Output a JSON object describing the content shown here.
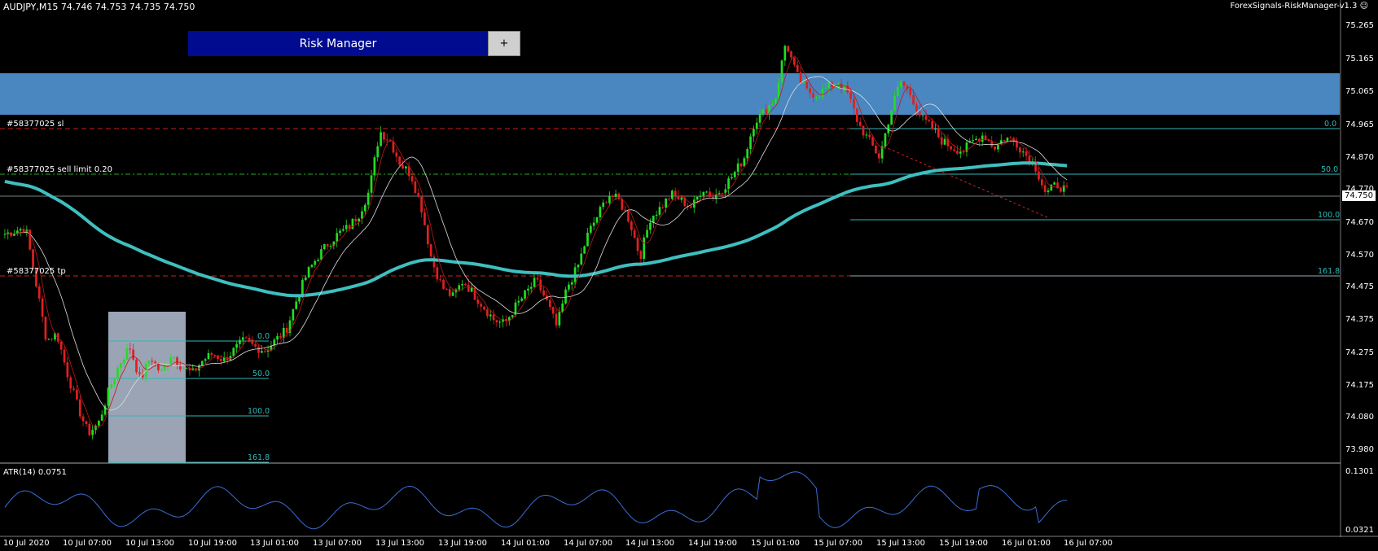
{
  "header": {
    "symbol_label": "AUDJPY,M15  74.746 74.753 74.735 74.750",
    "ea_label": "ForexSignals-RiskManager-v1.3 ☺"
  },
  "risk_manager": {
    "button_label": "Risk Manager",
    "plus_label": "+"
  },
  "orders": {
    "sl_label": "#58377025 sl",
    "limit_label": "#58377025 sell limit 0.20",
    "tp_label": "#58377025 tp"
  },
  "fib_right": {
    "l0": "0.0",
    "l50": "50.0",
    "l100": "100.0",
    "l161": "161.8"
  },
  "fib_left": {
    "l0": "0.0",
    "l50": "50.0",
    "l100": "100.0",
    "l161": "161.8"
  },
  "price_axis": [
    "75.265",
    "75.165",
    "75.065",
    "74.965",
    "74.870",
    "74.770",
    "74.670",
    "74.570",
    "74.475",
    "74.375",
    "74.275",
    "74.175",
    "74.080",
    "73.980"
  ],
  "current_price": "74.750",
  "atr": {
    "label": "ATR(14) 0.0751",
    "max": "0.1301",
    "min": "0.0321"
  },
  "time_axis": [
    "10 Jul 2020",
    "10 Jul 07:00",
    "10 Jul 13:00",
    "10 Jul 19:00",
    "13 Jul 01:00",
    "13 Jul 07:00",
    "13 Jul 13:00",
    "13 Jul 19:00",
    "14 Jul 01:00",
    "14 Jul 07:00",
    "14 Jul 13:00",
    "14 Jul 19:00",
    "15 Jul 01:00",
    "15 Jul 07:00",
    "15 Jul 13:00",
    "15 Jul 19:00",
    "16 Jul 01:00",
    "16 Jul 07:00"
  ],
  "colors": {
    "bull": "#22dd22",
    "bear": "#e02020",
    "ma_slow": "#3fbfbf",
    "zone": "#4a86c0",
    "sl_line": "#cc2020",
    "limit_line": "#22aa22",
    "fib": "#2fb9b9",
    "atr": "#3a6ed6",
    "box": "#a7b2c4",
    "rm_bg": "#000b8f"
  },
  "chart_data": {
    "type": "candlestick",
    "symbol": "AUDJPY",
    "timeframe": "M15",
    "ohlc_last": {
      "open": 74.746,
      "high": 74.753,
      "low": 74.735,
      "close": 74.75
    },
    "price_range": [
      73.94,
      75.3
    ],
    "close_path": [
      [
        0,
        74.62
      ],
      [
        2,
        74.64
      ],
      [
        4,
        74.3
      ],
      [
        5,
        74.32
      ],
      [
        6,
        74.2
      ],
      [
        7,
        74.1
      ],
      [
        8,
        74.02
      ],
      [
        9,
        74.05
      ],
      [
        10,
        74.15
      ],
      [
        11,
        74.23
      ],
      [
        12,
        74.28
      ],
      [
        13,
        74.18
      ],
      [
        14,
        74.25
      ],
      [
        15,
        74.2
      ],
      [
        16,
        74.26
      ],
      [
        17,
        74.22
      ],
      [
        18,
        74.2
      ],
      [
        19,
        74.24
      ],
      [
        20,
        74.26
      ],
      [
        21,
        74.24
      ],
      [
        22,
        74.27
      ],
      [
        23,
        74.3
      ],
      [
        24,
        74.28
      ],
      [
        25,
        74.27
      ],
      [
        26,
        74.3
      ],
      [
        27,
        74.33
      ],
      [
        28,
        74.42
      ],
      [
        29,
        74.5
      ],
      [
        30,
        74.55
      ],
      [
        31,
        74.59
      ],
      [
        32,
        74.62
      ],
      [
        33,
        74.64
      ],
      [
        34,
        74.68
      ],
      [
        35,
        74.75
      ],
      [
        36,
        74.93
      ],
      [
        37,
        74.9
      ],
      [
        38,
        74.83
      ],
      [
        39,
        74.8
      ],
      [
        40,
        74.7
      ],
      [
        41,
        74.54
      ],
      [
        42,
        74.46
      ],
      [
        43,
        74.43
      ],
      [
        44,
        74.48
      ],
      [
        45,
        74.44
      ],
      [
        46,
        74.4
      ],
      [
        47,
        74.36
      ],
      [
        48,
        74.35
      ],
      [
        49,
        74.4
      ],
      [
        50,
        74.44
      ],
      [
        51,
        74.48
      ],
      [
        52,
        74.42
      ],
      [
        53,
        74.34
      ],
      [
        54,
        74.46
      ],
      [
        55,
        74.52
      ],
      [
        56,
        74.62
      ],
      [
        57,
        74.68
      ],
      [
        58,
        74.74
      ],
      [
        59,
        74.72
      ],
      [
        60,
        74.66
      ],
      [
        61,
        74.55
      ],
      [
        62,
        74.67
      ],
      [
        63,
        74.7
      ],
      [
        64,
        74.74
      ],
      [
        65,
        74.72
      ],
      [
        66,
        74.7
      ],
      [
        67,
        74.76
      ],
      [
        68,
        74.73
      ],
      [
        69,
        74.76
      ],
      [
        70,
        74.8
      ],
      [
        71,
        74.85
      ],
      [
        72,
        74.96
      ],
      [
        73,
        74.99
      ],
      [
        74,
        75.03
      ],
      [
        75,
        75.2
      ],
      [
        76,
        75.1
      ],
      [
        77,
        75.05
      ],
      [
        78,
        75.04
      ],
      [
        79,
        75.06
      ],
      [
        80,
        75.08
      ],
      [
        81,
        75.04
      ],
      [
        82,
        74.95
      ],
      [
        83,
        74.9
      ],
      [
        84,
        74.85
      ],
      [
        85,
        74.98
      ],
      [
        86,
        75.08
      ],
      [
        87,
        75.04
      ],
      [
        88,
        74.97
      ],
      [
        89,
        74.94
      ],
      [
        90,
        74.9
      ],
      [
        91,
        74.88
      ],
      [
        92,
        74.87
      ],
      [
        93,
        74.9
      ],
      [
        94,
        74.92
      ],
      [
        95,
        74.88
      ],
      [
        96,
        74.91
      ],
      [
        97,
        74.9
      ],
      [
        98,
        74.86
      ],
      [
        99,
        74.82
      ],
      [
        100,
        74.74
      ],
      [
        101,
        74.77
      ],
      [
        102,
        74.75
      ]
    ],
    "indicators": [
      "MA slow (teal)",
      "MA fast (white)",
      "MA fast (red)"
    ],
    "atr_subwindow": {
      "period": 14,
      "value": 0.0751,
      "max": 0.1301,
      "min": 0.0321
    }
  }
}
